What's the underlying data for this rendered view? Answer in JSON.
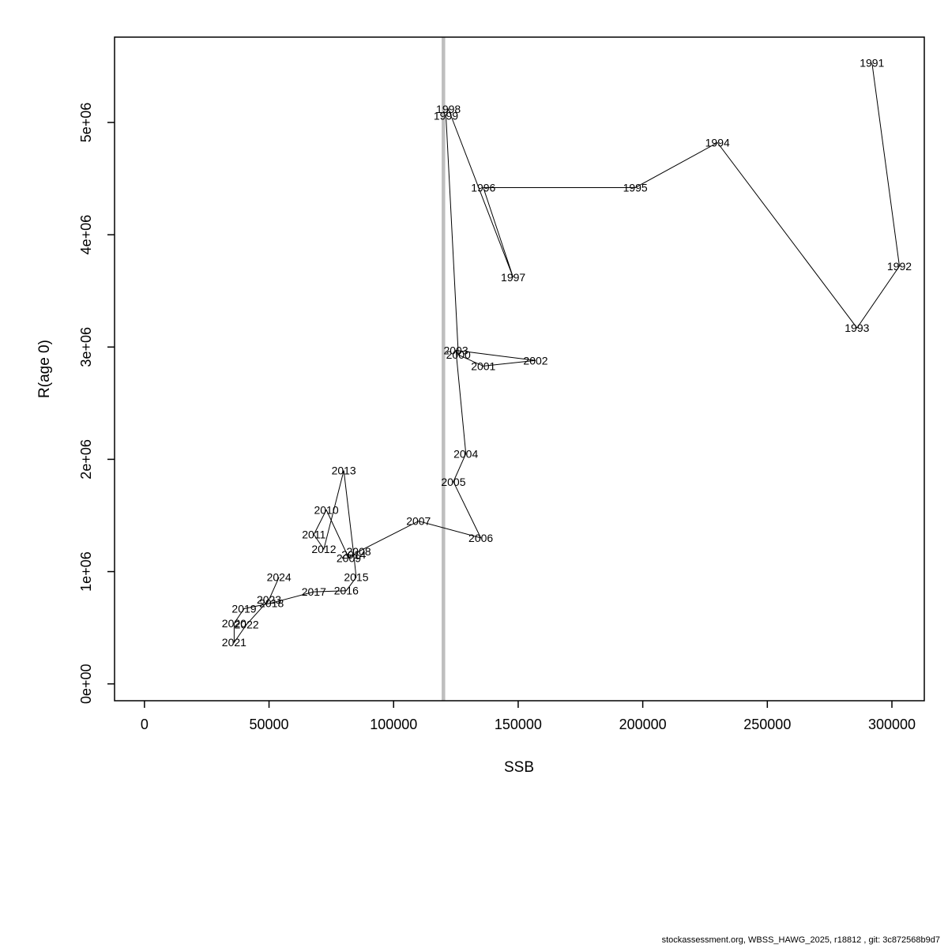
{
  "footer": {
    "text": "stockassessment.org, WBSS_HAWG_2025, r18812 , git: 3c872568b9d7"
  },
  "chart_data": {
    "type": "scatter",
    "title": "",
    "xlabel": "SSB",
    "ylabel": "R(age 0)",
    "x_ticks": [
      0,
      50000,
      100000,
      150000,
      200000,
      250000,
      300000
    ],
    "x_tick_labels": [
      "0",
      "50000",
      "100000",
      "150000",
      "200000",
      "250000",
      "300000"
    ],
    "y_ticks": [
      0,
      1000000,
      2000000,
      3000000,
      4000000,
      5000000
    ],
    "y_tick_labels": [
      "0e+00",
      "1e+06",
      "2e+06",
      "3e+06",
      "4e+06",
      "5e+06"
    ],
    "xlim": [
      -12000,
      313000
    ],
    "ylim": [
      -150000,
      5760000
    ],
    "grid": false,
    "legend": "none",
    "line_color": "#000000",
    "label_color": "#ff0000",
    "reference_line": {
      "orientation": "vertical",
      "x": 120000,
      "color": "#bebebe",
      "stroke_width": 4.5
    },
    "connect_points_chronologically": true,
    "points": [
      {
        "year": "1991",
        "ssb": 292000,
        "r": 5530000
      },
      {
        "year": "1992",
        "ssb": 303000,
        "r": 3720000
      },
      {
        "year": "1993",
        "ssb": 286000,
        "r": 3170000
      },
      {
        "year": "1994",
        "ssb": 230000,
        "r": 4820000
      },
      {
        "year": "1995",
        "ssb": 197000,
        "r": 4420000
      },
      {
        "year": "1996",
        "ssb": 136000,
        "r": 4420000
      },
      {
        "year": "1997",
        "ssb": 148000,
        "r": 3620000
      },
      {
        "year": "1998",
        "ssb": 122000,
        "r": 5120000
      },
      {
        "year": "1999",
        "ssb": 121000,
        "r": 5060000
      },
      {
        "year": "2000",
        "ssb": 126000,
        "r": 2930000
      },
      {
        "year": "2001",
        "ssb": 136000,
        "r": 2830000
      },
      {
        "year": "2002",
        "ssb": 157000,
        "r": 2880000
      },
      {
        "year": "2003",
        "ssb": 125000,
        "r": 2970000
      },
      {
        "year": "2004",
        "ssb": 129000,
        "r": 2050000
      },
      {
        "year": "2005",
        "ssb": 124000,
        "r": 1800000
      },
      {
        "year": "2006",
        "ssb": 135000,
        "r": 1300000
      },
      {
        "year": "2007",
        "ssb": 110000,
        "r": 1450000
      },
      {
        "year": "2008",
        "ssb": 86000,
        "r": 1180000
      },
      {
        "year": "2009",
        "ssb": 82000,
        "r": 1120000
      },
      {
        "year": "2010",
        "ssb": 73000,
        "r": 1550000
      },
      {
        "year": "2011",
        "ssb": 68000,
        "r": 1330000
      },
      {
        "year": "2012",
        "ssb": 72000,
        "r": 1200000
      },
      {
        "year": "2013",
        "ssb": 80000,
        "r": 1900000
      },
      {
        "year": "2014",
        "ssb": 84000,
        "r": 1150000
      },
      {
        "year": "2015",
        "ssb": 85000,
        "r": 950000
      },
      {
        "year": "2016",
        "ssb": 81000,
        "r": 830000
      },
      {
        "year": "2017",
        "ssb": 68000,
        "r": 820000
      },
      {
        "year": "2018",
        "ssb": 51000,
        "r": 720000
      },
      {
        "year": "2019",
        "ssb": 40000,
        "r": 670000
      },
      {
        "year": "2020",
        "ssb": 36000,
        "r": 540000
      },
      {
        "year": "2021",
        "ssb": 36000,
        "r": 370000
      },
      {
        "year": "2022",
        "ssb": 41000,
        "r": 530000
      },
      {
        "year": "2023",
        "ssb": 50000,
        "r": 750000
      },
      {
        "year": "2024",
        "ssb": 54000,
        "r": 950000
      }
    ]
  }
}
